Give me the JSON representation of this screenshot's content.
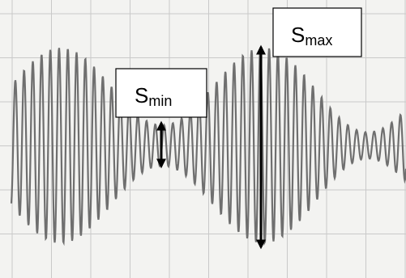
{
  "labels": {
    "s_min": {
      "symbol": "S",
      "subscript": "min"
    },
    "s_max": {
      "symbol": "S",
      "subscript": "max"
    }
  }
}
